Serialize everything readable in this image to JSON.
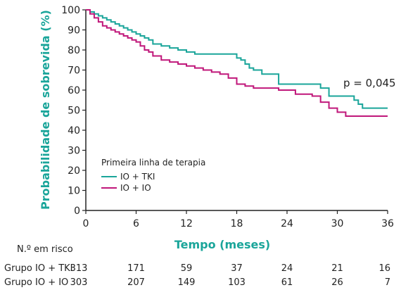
{
  "chart_data": {
    "type": "line",
    "title": "",
    "xlabel": "Tempo (meses)",
    "ylabel": "Probabilidade de sobrevida (%)",
    "xlim": [
      0,
      36
    ],
    "ylim": [
      0,
      100
    ],
    "xticks": [
      0,
      6,
      12,
      18,
      24,
      30,
      36
    ],
    "yticks": [
      0,
      10,
      20,
      30,
      40,
      50,
      60,
      70,
      80,
      90,
      100
    ],
    "grid": false,
    "legend": {
      "title": "Primeira linha de terapia",
      "placement": "bottom-left"
    },
    "annotation": "p = 0,045",
    "series": [
      {
        "name": "IO + TKI",
        "color": "#1aa59a",
        "x": [
          0,
          0.5,
          1,
          1.5,
          2,
          2.5,
          3,
          3.5,
          4,
          4.5,
          5,
          5.5,
          6,
          6.5,
          7,
          7.5,
          8,
          9,
          10,
          11,
          12,
          13,
          14,
          15,
          16,
          17,
          18,
          18.5,
          19,
          19.5,
          20,
          21,
          22,
          23,
          24,
          25,
          26,
          27,
          28,
          29,
          30,
          31,
          32,
          32.5,
          33,
          34,
          35,
          36
        ],
        "y": [
          100,
          99,
          98,
          97,
          96,
          95,
          94,
          93,
          92,
          91,
          90,
          89,
          88,
          87,
          86,
          85,
          83,
          82,
          81,
          80,
          79,
          78,
          78,
          78,
          78,
          78,
          76,
          75,
          73,
          71,
          70,
          68,
          68,
          63,
          63,
          63,
          63,
          63,
          61,
          57,
          57,
          57,
          55,
          53,
          51,
          51,
          51,
          51
        ]
      },
      {
        "name": "IO + IO",
        "color": "#c0177a",
        "x": [
          0,
          0.5,
          1,
          1.5,
          2,
          2.5,
          3,
          3.5,
          4,
          4.5,
          5,
          5.5,
          6,
          6.5,
          7,
          7.5,
          8,
          9,
          10,
          11,
          12,
          13,
          14,
          15,
          16,
          17,
          18,
          19,
          20,
          21,
          22,
          23,
          24,
          25,
          26,
          27,
          28,
          29,
          30,
          31,
          32,
          33,
          34,
          35,
          36
        ],
        "y": [
          100,
          98,
          96,
          94,
          92,
          91,
          90,
          89,
          88,
          87,
          86,
          85,
          84,
          82,
          80,
          79,
          77,
          75,
          74,
          73,
          72,
          71,
          70,
          69,
          68,
          66,
          63,
          62,
          61,
          61,
          61,
          60,
          60,
          58,
          58,
          57,
          54,
          51,
          49,
          47,
          47,
          47,
          47,
          47,
          47
        ]
      }
    ],
    "risk_table": {
      "header": "N.º em risco",
      "times": [
        0,
        6,
        12,
        18,
        24,
        30,
        36
      ],
      "groups": [
        {
          "label": "Grupo IO + TKI",
          "values": [
            "313",
            "171",
            "59",
            "37",
            "24",
            "21",
            "16"
          ]
        },
        {
          "label": "Grupo IO + IO",
          "values": [
            "303",
            "207",
            "149",
            "103",
            "61",
            "26",
            "7"
          ]
        }
      ]
    }
  }
}
